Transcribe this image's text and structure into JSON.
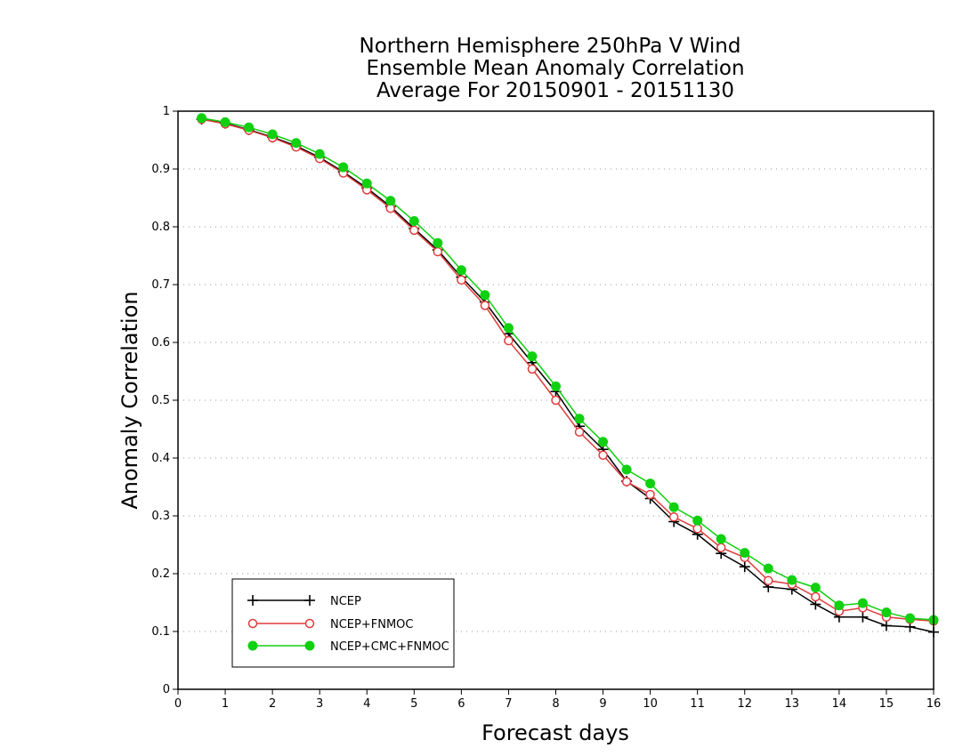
{
  "chart_data": {
    "type": "line",
    "title": [
      "Northern Hemisphere 250hPa V Wind",
      "Ensemble Mean Anomaly Correlation",
      "Average For 20150901 - 20151130"
    ],
    "xlabel": "Forecast days",
    "ylabel": "Anomaly Correlation",
    "xlim": [
      0,
      16
    ],
    "ylim": [
      0,
      1
    ],
    "x_ticks": [
      "0",
      "1",
      "2",
      "3",
      "4",
      "5",
      "6",
      "7",
      "8",
      "9",
      "10",
      "11",
      "12",
      "13",
      "14",
      "15",
      "16"
    ],
    "y_ticks": [
      "0",
      "0.1",
      "0.2",
      "0.3",
      "0.4",
      "0.5",
      "0.6",
      "0.7",
      "0.8",
      "0.9",
      "1"
    ],
    "grid": "horizontal-dotted",
    "legend_position": "bottom-left",
    "x": [
      0.5,
      1,
      1.5,
      2,
      2.5,
      3,
      3.5,
      4,
      4.5,
      5,
      5.5,
      6,
      6.5,
      7,
      7.5,
      8,
      8.5,
      9,
      9.5,
      10,
      10.5,
      11,
      11.5,
      12,
      12.5,
      13,
      13.5,
      14,
      14.5,
      15,
      15.5,
      16
    ],
    "series": [
      {
        "name": "NCEP",
        "color": "#000000",
        "marker": "plus",
        "values": [
          0.986,
          0.979,
          0.968,
          0.955,
          0.94,
          0.92,
          0.895,
          0.867,
          0.835,
          0.797,
          0.76,
          0.713,
          0.67,
          0.615,
          0.565,
          0.515,
          0.455,
          0.415,
          0.36,
          0.33,
          0.29,
          0.268,
          0.235,
          0.212,
          0.177,
          0.173,
          0.147,
          0.125,
          0.125,
          0.11,
          0.108,
          0.099
        ]
      },
      {
        "name": "NCEP+FNMOC",
        "color": "#e03c3c",
        "marker": "open-circle",
        "values": [
          0.986,
          0.978,
          0.967,
          0.954,
          0.938,
          0.918,
          0.893,
          0.864,
          0.832,
          0.794,
          0.757,
          0.708,
          0.664,
          0.603,
          0.554,
          0.5,
          0.445,
          0.405,
          0.359,
          0.337,
          0.298,
          0.278,
          0.245,
          0.228,
          0.188,
          0.182,
          0.16,
          0.135,
          0.141,
          0.125,
          0.121,
          0.118
        ]
      },
      {
        "name": "NCEP+CMC+FNMOC",
        "color": "#10d010",
        "marker": "filled-circle",
        "values": [
          0.988,
          0.981,
          0.972,
          0.96,
          0.945,
          0.926,
          0.903,
          0.875,
          0.845,
          0.81,
          0.772,
          0.725,
          0.682,
          0.625,
          0.576,
          0.524,
          0.468,
          0.428,
          0.38,
          0.356,
          0.315,
          0.292,
          0.26,
          0.236,
          0.209,
          0.189,
          0.176,
          0.145,
          0.149,
          0.133,
          0.123,
          0.12
        ]
      }
    ]
  }
}
